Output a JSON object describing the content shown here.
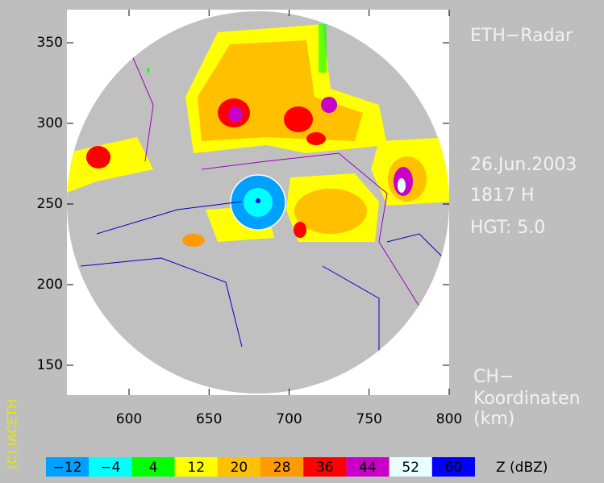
{
  "header": {
    "title": "ETH−Radar",
    "date": "26.Jun.2003",
    "time": "1817 H",
    "height": "HGT: 5.0"
  },
  "axes": {
    "note": [
      "CH−",
      "Koordinaten",
      "(km)"
    ],
    "x_ticks": [
      600,
      650,
      700,
      750,
      800
    ],
    "y_ticks": [
      150,
      200,
      250,
      300,
      350
    ]
  },
  "credit": "(C) IACETH",
  "legend": {
    "unit": "Z  (dBZ)",
    "items": [
      {
        "label": "−12",
        "color": "#00a0ff"
      },
      {
        "label": "−4",
        "color": "#00ffff"
      },
      {
        "label": "4",
        "color": "#00ff00"
      },
      {
        "label": "12",
        "color": "#ffff00"
      },
      {
        "label": "20",
        "color": "#ffc000"
      },
      {
        "label": "28",
        "color": "#ff9a00"
      },
      {
        "label": "36",
        "color": "#ff0000"
      },
      {
        "label": "44",
        "color": "#c800c8"
      },
      {
        "label": "52",
        "color": "#e8ffff"
      },
      {
        "label": "60",
        "color": "#0000ff"
      }
    ]
  }
}
